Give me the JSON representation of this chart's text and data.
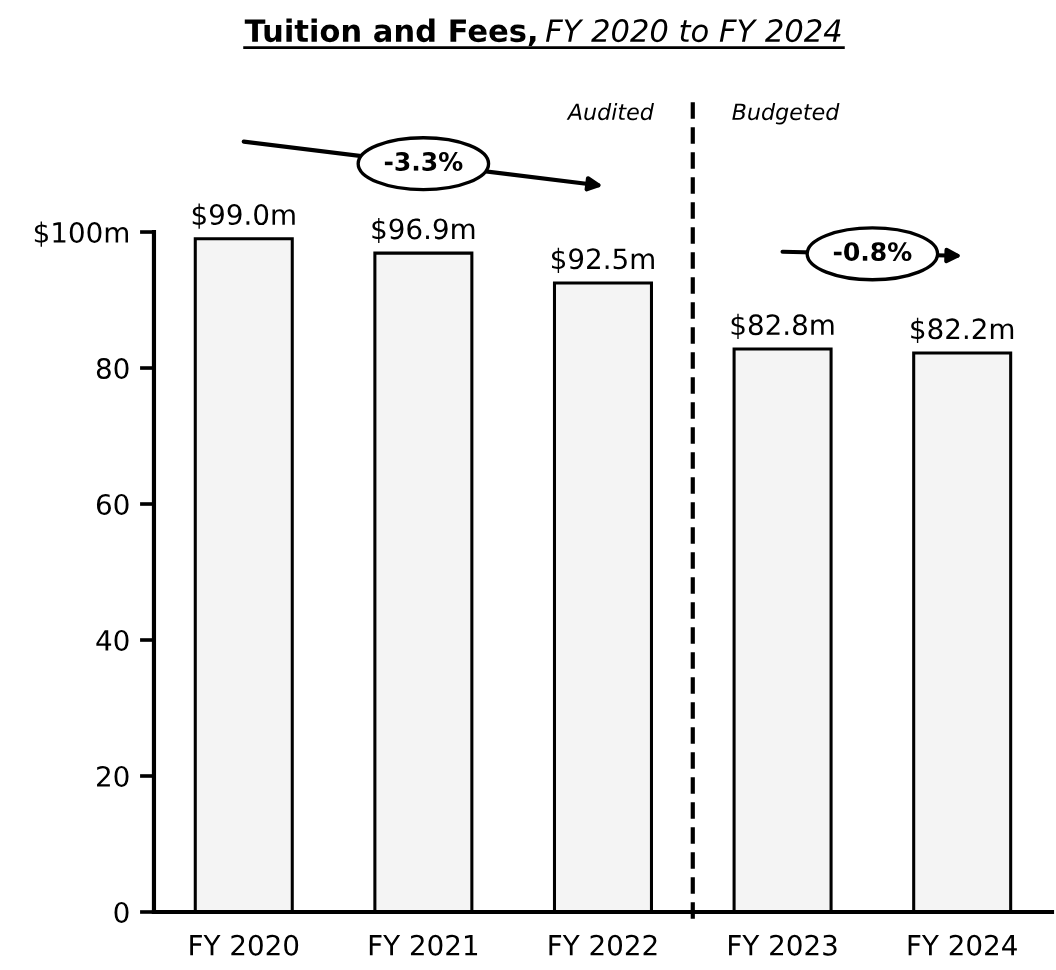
{
  "chart_data": {
    "type": "bar",
    "title": "Tuition and Fees,",
    "subtitle": "FY 2020 to FY 2024",
    "categories": [
      "FY 2020",
      "FY 2021",
      "FY 2022",
      "FY 2023",
      "FY 2024"
    ],
    "values": [
      99.0,
      96.9,
      92.5,
      82.8,
      82.2
    ],
    "value_labels": [
      "$99.0m",
      "$96.9m",
      "$92.5m",
      "$82.8m",
      "$82.2m"
    ],
    "color": "#f4f4f4",
    "ylim": [
      0,
      100
    ],
    "yticks": [
      0,
      20,
      40,
      60,
      80,
      {
        "value": 100,
        "label": "$100m"
      }
    ],
    "annotations": [
      "Audited",
      "Budgeted",
      "-3.3%",
      "-0.8%"
    ]
  }
}
